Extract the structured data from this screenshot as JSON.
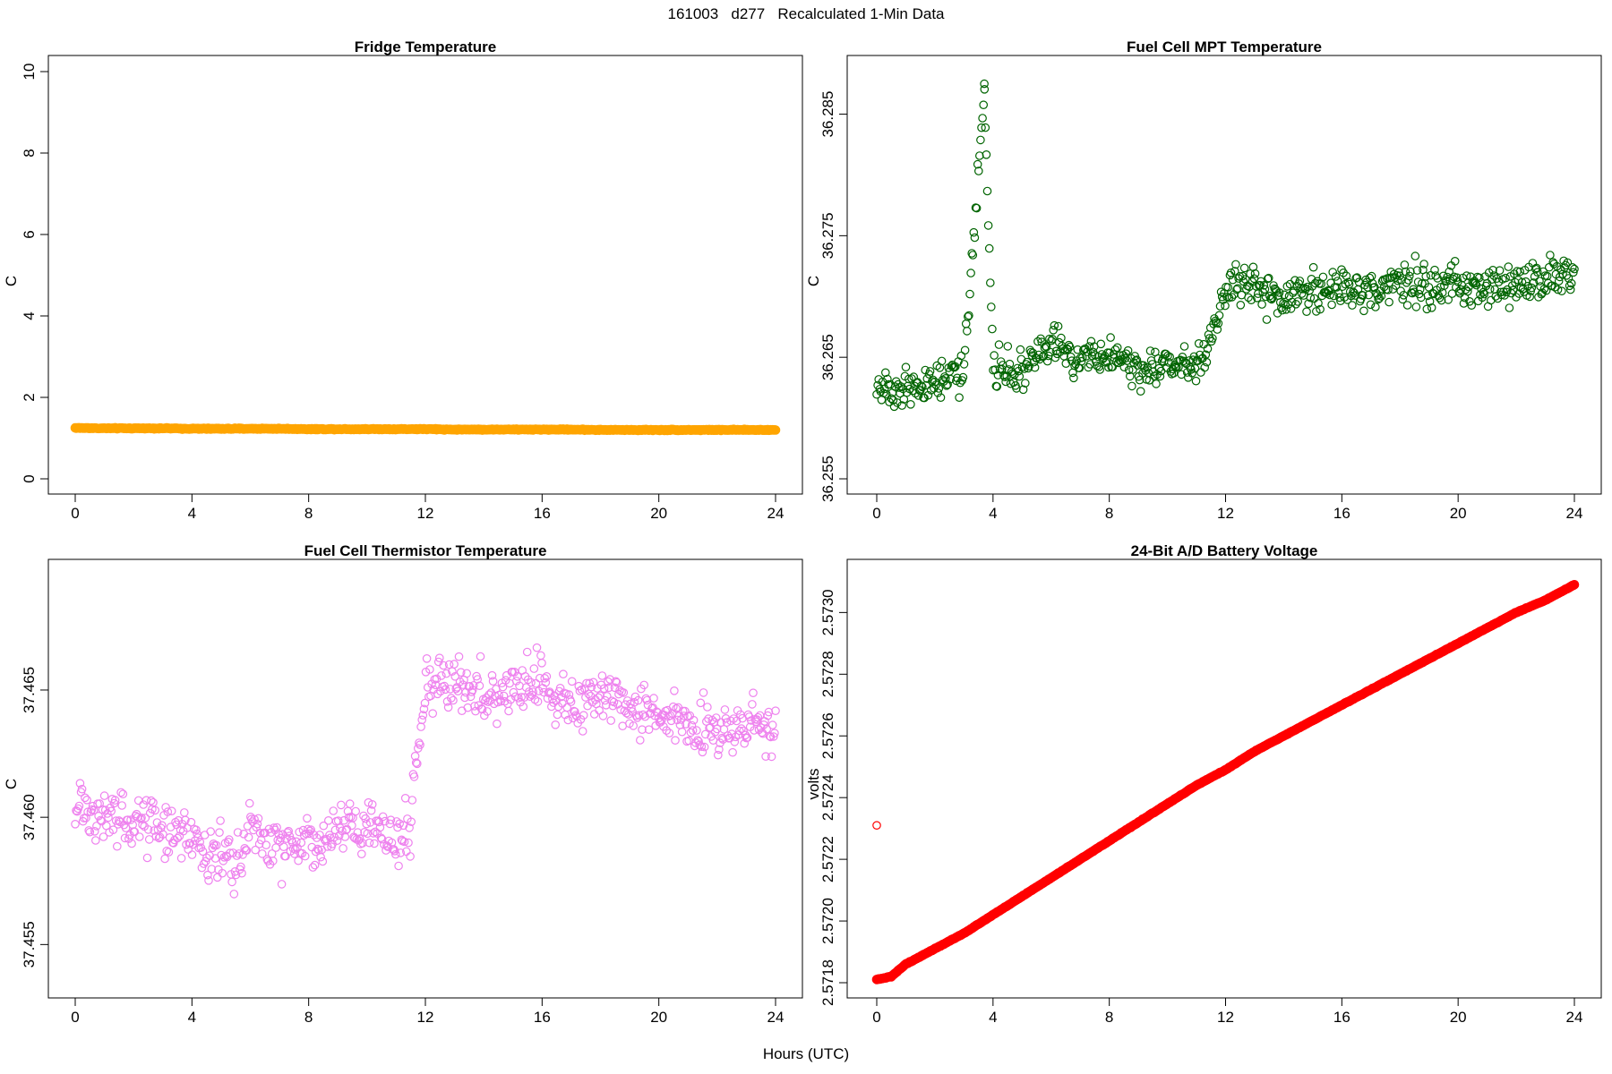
{
  "figure": {
    "title": "161003   d277   Recalculated 1-Min Data",
    "xlabel": "Hours (UTC)"
  },
  "chart_data": [
    {
      "type": "scatter",
      "title": "Fridge Temperature",
      "xlabel": "Hours (UTC)",
      "ylabel": "C",
      "xlim": [
        0,
        24
      ],
      "ylim": [
        0,
        10
      ],
      "xticks": [
        "0",
        "4",
        "8",
        "12",
        "16",
        "20",
        "24"
      ],
      "yticks": [
        "0",
        "2",
        "4",
        "6",
        "8",
        "10"
      ],
      "color": "#FFA500",
      "grid": false,
      "legend": "none",
      "series": [
        {
          "x": [
            0,
            1,
            2,
            3,
            4,
            5,
            6,
            7,
            8,
            9,
            10,
            11,
            12,
            13,
            14,
            15,
            16,
            17,
            18,
            19,
            20,
            21,
            22,
            23,
            24
          ],
          "y": [
            1.25,
            1.24,
            1.24,
            1.24,
            1.23,
            1.23,
            1.23,
            1.23,
            1.22,
            1.22,
            1.22,
            1.22,
            1.22,
            1.21,
            1.21,
            1.21,
            1.21,
            1.21,
            1.2,
            1.2,
            1.2,
            1.2,
            1.2,
            1.2,
            1.2
          ]
        }
      ]
    },
    {
      "type": "scatter",
      "title": "Fuel Cell MPT Temperature",
      "xlabel": "Hours (UTC)",
      "ylabel": "C",
      "xlim": [
        0,
        24
      ],
      "ylim": [
        36.255,
        36.2885
      ],
      "xticks": [
        "0",
        "4",
        "8",
        "12",
        "16",
        "20",
        "24"
      ],
      "yticks": [
        "36.255",
        "36.265",
        "36.275",
        "36.285"
      ],
      "color": "#006400",
      "grid": false,
      "legend": "none",
      "series": [
        {
          "x": [
            0,
            1,
            2,
            3,
            3.7,
            4,
            5,
            6,
            7,
            8,
            9,
            10,
            11,
            11.5,
            12,
            12.5,
            13,
            14,
            15,
            16,
            17,
            18,
            19,
            20,
            21,
            22,
            23,
            23.5,
            24
          ],
          "y": [
            36.2625,
            36.2625,
            36.263,
            36.2635,
            36.2875,
            36.264,
            36.264,
            36.266,
            36.265,
            36.2655,
            36.264,
            36.2645,
            36.2645,
            36.2665,
            36.2705,
            36.2715,
            36.271,
            36.2695,
            36.2705,
            36.271,
            36.2705,
            36.271,
            36.2705,
            36.271,
            36.2705,
            36.271,
            36.2715,
            36.272,
            36.2715
          ]
        }
      ]
    },
    {
      "type": "scatter",
      "title": "Fuel Cell Thermistor Temperature",
      "xlabel": "Hours (UTC)",
      "ylabel": "C",
      "xlim": [
        0,
        24
      ],
      "ylim": [
        37.4535,
        37.4695
      ],
      "xticks": [
        "0",
        "4",
        "8",
        "12",
        "16",
        "20",
        "24"
      ],
      "yticks": [
        "37.455",
        "37.460",
        "37.465"
      ],
      "color": "#EE82EE",
      "grid": false,
      "legend": "none",
      "series": [
        {
          "x": [
            0,
            1,
            2,
            3,
            4,
            5,
            5.5,
            6,
            7,
            8,
            9,
            10,
            11,
            11.5,
            12,
            13,
            14,
            15,
            16,
            17,
            18,
            19,
            20,
            21,
            22,
            23,
            24
          ],
          "y": [
            37.4605,
            37.46,
            37.4598,
            37.4597,
            37.4592,
            37.4585,
            37.4582,
            37.4595,
            37.4588,
            37.4592,
            37.4593,
            37.4597,
            37.4593,
            37.46,
            37.4653,
            37.4653,
            37.4648,
            37.4652,
            37.4652,
            37.4645,
            37.4648,
            37.4643,
            37.4642,
            37.4635,
            37.4633,
            37.4635,
            37.4638
          ]
        }
      ]
    },
    {
      "type": "scatter",
      "title": "24-Bit A/D Battery Voltage",
      "xlabel": "Hours (UTC)",
      "ylabel": "volts",
      "xlim": [
        0,
        24
      ],
      "ylim": [
        2.5718,
        2.57312
      ],
      "xticks": [
        "0",
        "4",
        "8",
        "12",
        "16",
        "20",
        "24"
      ],
      "yticks": [
        "2.5718",
        "2.5720",
        "2.5722",
        "2.5724",
        "2.5726",
        "2.5728",
        "2.5730"
      ],
      "color": "#FF0000",
      "grid": false,
      "legend": "none",
      "series": [
        {
          "x": [
            0,
            0.5,
            1,
            2,
            3,
            4,
            5,
            6,
            7,
            8,
            9,
            10,
            11,
            12,
            13,
            14,
            15,
            16,
            17,
            18,
            19,
            20,
            21,
            22,
            23,
            24
          ],
          "y": [
            2.57181,
            2.57182,
            2.57186,
            2.57191,
            2.57196,
            2.57202,
            2.57208,
            2.57214,
            2.5722,
            2.57226,
            2.57232,
            2.57238,
            2.57244,
            2.57249,
            2.57255,
            2.5726,
            2.57265,
            2.5727,
            2.57275,
            2.5728,
            2.57285,
            2.5729,
            2.57295,
            2.573,
            2.57304,
            2.57309
          ]
        },
        {
          "x": [
            0
          ],
          "y": [
            2.57231
          ]
        }
      ]
    }
  ]
}
